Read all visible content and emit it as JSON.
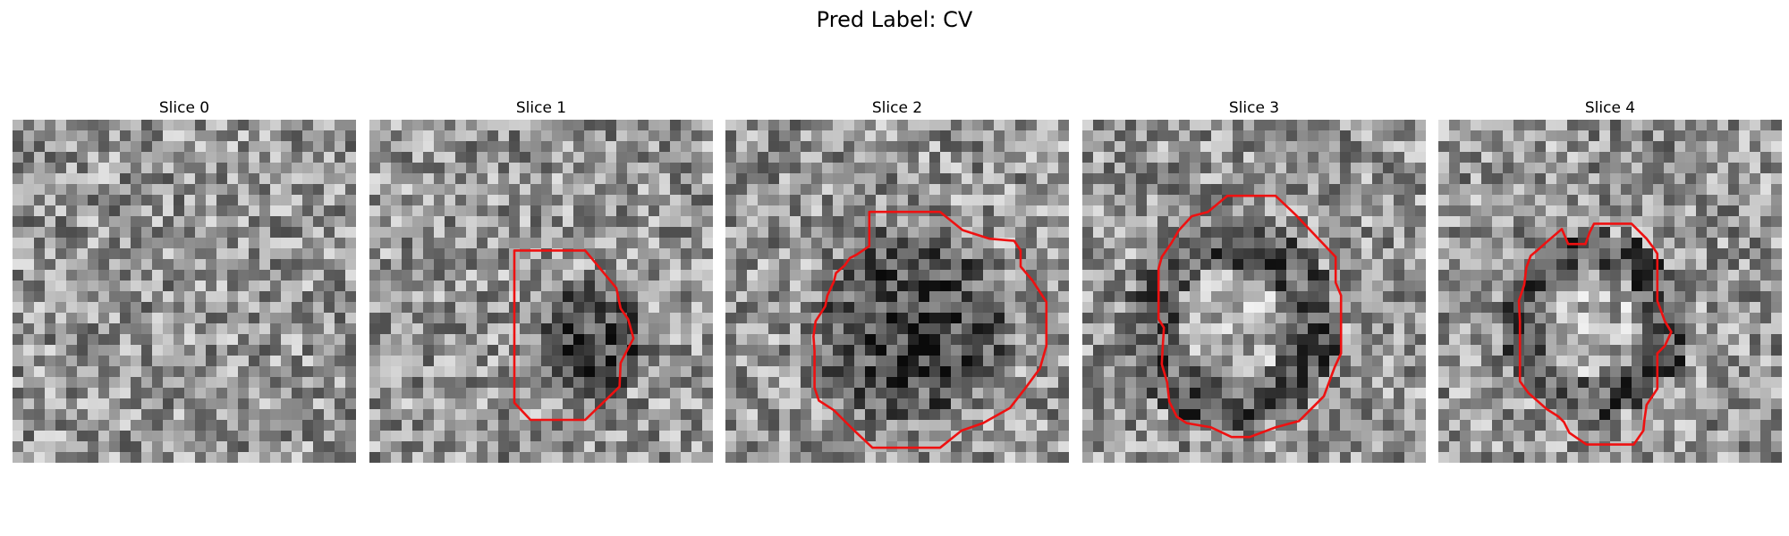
{
  "figure": {
    "title": "Pred Label: CV",
    "contour_color": "#ee1111",
    "colormap": "gray",
    "panels": [
      {
        "title": "Slice 0",
        "contour": null
      },
      {
        "title": "Slice 1",
        "contour": [
          [
            13.5,
            12.2
          ],
          [
            20.1,
            12.2
          ],
          [
            23.0,
            15.7
          ],
          [
            23.4,
            17.6
          ],
          [
            24.1,
            18.6
          ],
          [
            24.6,
            20.4
          ],
          [
            23.8,
            21.9
          ],
          [
            23.4,
            22.7
          ],
          [
            23.3,
            24.9
          ],
          [
            20.1,
            28.0
          ],
          [
            15.0,
            28.0
          ],
          [
            13.5,
            26.4
          ]
        ]
      },
      {
        "title": "Slice 2",
        "contour": [
          [
            13.4,
            8.6
          ],
          [
            20.0,
            8.6
          ],
          [
            22.1,
            10.3
          ],
          [
            24.6,
            11.1
          ],
          [
            26.9,
            11.3
          ],
          [
            27.5,
            12.2
          ],
          [
            27.5,
            13.7
          ],
          [
            28.6,
            15.0
          ],
          [
            29.9,
            17.0
          ],
          [
            29.9,
            21.1
          ],
          [
            29.3,
            23.2
          ],
          [
            27.9,
            25.1
          ],
          [
            26.5,
            26.9
          ],
          [
            24.0,
            28.3
          ],
          [
            22.0,
            29.0
          ],
          [
            20.0,
            30.6
          ],
          [
            13.7,
            30.6
          ],
          [
            12.0,
            29.0
          ],
          [
            11.0,
            28.0
          ],
          [
            10.1,
            27.1
          ],
          [
            8.7,
            26.2
          ],
          [
            8.3,
            25.0
          ],
          [
            8.3,
            21.6
          ],
          [
            8.2,
            20.2
          ],
          [
            8.4,
            18.8
          ],
          [
            9.3,
            17.4
          ],
          [
            9.5,
            16.4
          ],
          [
            10.1,
            15.1
          ],
          [
            10.3,
            14.3
          ],
          [
            11.1,
            13.6
          ],
          [
            11.6,
            12.9
          ],
          [
            12.2,
            12.6
          ],
          [
            13.4,
            11.8
          ]
        ]
      },
      {
        "title": "Slice 3",
        "contour": [
          [
            11.7,
            8.6
          ],
          [
            13.5,
            7.1
          ],
          [
            18.0,
            7.1
          ],
          [
            19.9,
            8.9
          ],
          [
            23.6,
            12.8
          ],
          [
            23.6,
            15.2
          ],
          [
            24.1,
            16.4
          ],
          [
            24.1,
            21.8
          ],
          [
            23.5,
            23.1
          ],
          [
            22.5,
            25.8
          ],
          [
            20.2,
            28.1
          ],
          [
            18.0,
            28.7
          ],
          [
            15.6,
            29.6
          ],
          [
            13.9,
            29.6
          ],
          [
            12.0,
            28.7
          ],
          [
            9.7,
            28.3
          ],
          [
            8.8,
            27.7
          ],
          [
            8.1,
            26.3
          ],
          [
            7.9,
            24.5
          ],
          [
            7.4,
            22.8
          ],
          [
            7.5,
            21.0
          ],
          [
            7.6,
            19.4
          ],
          [
            7.1,
            18.6
          ],
          [
            7.1,
            13.9
          ],
          [
            7.4,
            12.8
          ],
          [
            8.3,
            11.5
          ],
          [
            9.0,
            10.3
          ],
          [
            10.2,
            9.0
          ]
        ]
      },
      {
        "title": "Slice 4",
        "contour": [
          [
            11.5,
            10.2
          ],
          [
            12.1,
            11.6
          ],
          [
            13.7,
            11.6
          ],
          [
            14.1,
            10.5
          ],
          [
            14.5,
            9.7
          ],
          [
            18.0,
            9.7
          ],
          [
            19.4,
            11.1
          ],
          [
            20.0,
            11.9
          ],
          [
            20.4,
            12.5
          ],
          [
            20.4,
            16.9
          ],
          [
            21.1,
            18.8
          ],
          [
            21.7,
            19.8
          ],
          [
            21.1,
            21.1
          ],
          [
            20.4,
            21.8
          ],
          [
            20.4,
            25.1
          ],
          [
            19.4,
            26.6
          ],
          [
            19.2,
            28.0
          ],
          [
            19.1,
            29.0
          ],
          [
            18.2,
            30.3
          ],
          [
            13.8,
            30.3
          ],
          [
            12.2,
            29.2
          ],
          [
            11.7,
            28.2
          ],
          [
            11.2,
            27.7
          ],
          [
            10.1,
            27.0
          ],
          [
            8.4,
            25.5
          ],
          [
            7.6,
            24.4
          ],
          [
            7.6,
            18.8
          ],
          [
            7.5,
            16.9
          ],
          [
            8.0,
            15.4
          ],
          [
            8.2,
            13.8
          ],
          [
            8.6,
            12.7
          ],
          [
            9.2,
            12.2
          ],
          [
            10.1,
            11.4
          ]
        ]
      }
    ]
  }
}
